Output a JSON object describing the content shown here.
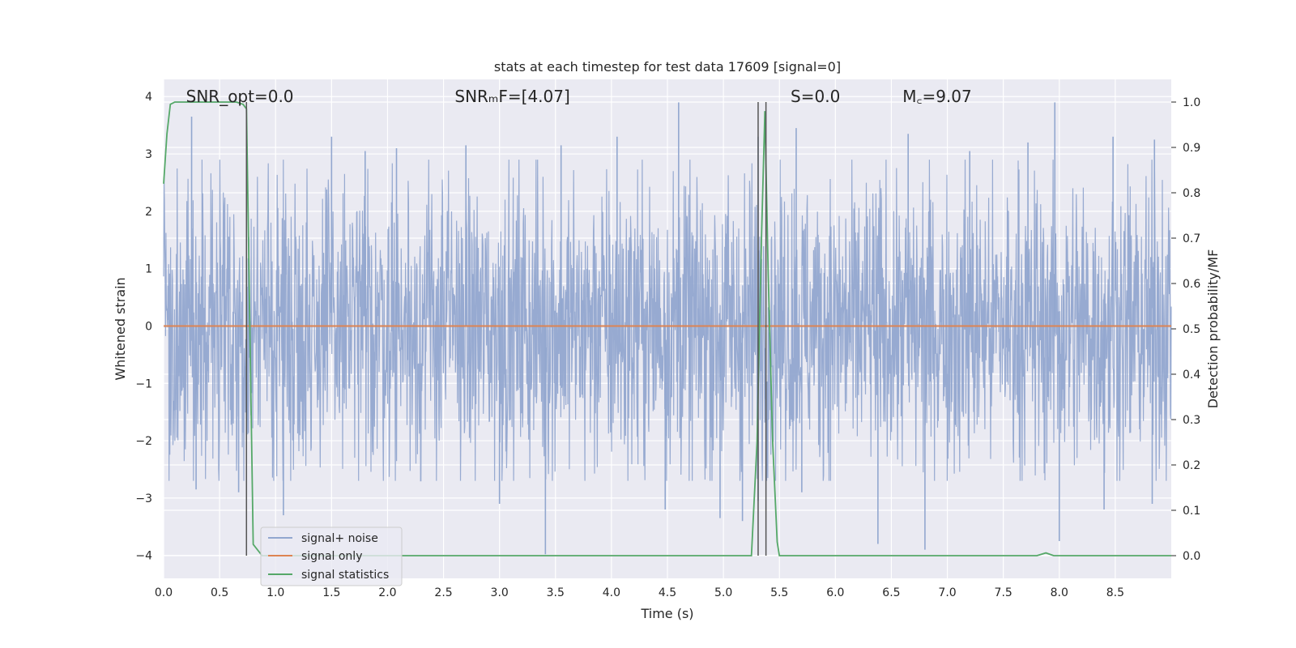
{
  "chart_data": {
    "type": "line",
    "title": "stats at each timestep for test data 17609 [signal=0]",
    "xlabel": "Time (s)",
    "ylabel_left": "Whitened strain",
    "ylabel_right": "Detection probability/MF",
    "xlim": [
      0.0,
      9.0
    ],
    "ylim_left": [
      -4.4,
      4.3
    ],
    "ylim_right": [
      -0.05,
      1.05
    ],
    "x_ticks": [
      0.0,
      0.5,
      1.0,
      1.5,
      2.0,
      2.5,
      3.0,
      3.5,
      4.0,
      4.5,
      5.0,
      5.5,
      6.0,
      6.5,
      7.0,
      7.5,
      8.0,
      8.5
    ],
    "x_tick_labels": [
      "0.0",
      "0.5",
      "1.0",
      "1.5",
      "2.0",
      "2.5",
      "3.0",
      "3.5",
      "4.0",
      "4.5",
      "5.0",
      "5.5",
      "6.0",
      "6.5",
      "7.0",
      "7.5",
      "8.0",
      "8.5"
    ],
    "y_left_ticks": [
      -4,
      -3,
      -2,
      -1,
      0,
      1,
      2,
      3,
      4
    ],
    "y_left_tick_labels": [
      "−4",
      "−3",
      "−2",
      "−1",
      "0",
      "1",
      "2",
      "3",
      "4"
    ],
    "y_right_ticks": [
      0.0,
      0.1,
      0.2,
      0.3,
      0.4,
      0.5,
      0.6,
      0.7,
      0.8,
      0.9,
      1.0
    ],
    "y_right_tick_labels": [
      "0.0",
      "0.1",
      "0.2",
      "0.3",
      "0.4",
      "0.5",
      "0.6",
      "0.7",
      "0.8",
      "0.9",
      "1.0"
    ],
    "grid": true,
    "legend_position": "lower-left",
    "annotations": [
      {
        "id": "snr-opt",
        "text": "SNR_opt=0.0",
        "x": 0.2
      },
      {
        "id": "snr-mf",
        "text": "SNRₘF=[4.07]",
        "x": 2.6
      },
      {
        "id": "s-value",
        "text": "S=0.0",
        "x": 5.6
      },
      {
        "id": "mc-value",
        "text": "M꜀=9.07",
        "x": 6.6
      }
    ],
    "vertical_lines": [
      0.74,
      5.31,
      5.38
    ],
    "series": [
      {
        "name": "signal+ noise",
        "color": "#92a7cf",
        "axis": "left",
        "kind": "noise",
        "duration": 9.0,
        "typical_range": [
          -1.9,
          2.3
        ],
        "spikes": [
          {
            "x": 0.25,
            "y": 3.65
          },
          {
            "x": 0.29,
            "y": -2.85
          },
          {
            "x": 0.67,
            "y": -2.9
          },
          {
            "x": 1.07,
            "y": -3.3
          },
          {
            "x": 1.5,
            "y": 3.3
          },
          {
            "x": 1.8,
            "y": 3.05
          },
          {
            "x": 2.08,
            "y": 3.1
          },
          {
            "x": 2.7,
            "y": 3.15
          },
          {
            "x": 3.0,
            "y": -3.1
          },
          {
            "x": 3.41,
            "y": -3.98
          },
          {
            "x": 3.55,
            "y": 3.15
          },
          {
            "x": 4.05,
            "y": 3.3
          },
          {
            "x": 4.48,
            "y": -3.2
          },
          {
            "x": 4.6,
            "y": 3.9
          },
          {
            "x": 4.97,
            "y": -3.35
          },
          {
            "x": 5.17,
            "y": -3.4
          },
          {
            "x": 5.31,
            "y": 3.3
          },
          {
            "x": 5.31,
            "y": -3.05
          },
          {
            "x": 5.65,
            "y": 3.45
          },
          {
            "x": 5.7,
            "y": -2.9
          },
          {
            "x": 6.38,
            "y": -3.8
          },
          {
            "x": 6.65,
            "y": 3.35
          },
          {
            "x": 6.8,
            "y": -3.9
          },
          {
            "x": 7.2,
            "y": 3.05
          },
          {
            "x": 7.72,
            "y": 3.2
          },
          {
            "x": 7.96,
            "y": 3.9
          },
          {
            "x": 8.0,
            "y": -3.75
          },
          {
            "x": 8.4,
            "y": -3.2
          },
          {
            "x": 8.48,
            "y": 3.3
          },
          {
            "x": 8.85,
            "y": 3.25
          },
          {
            "x": 8.83,
            "y": -3.1
          }
        ]
      },
      {
        "name": "signal only",
        "color": "#dd8452",
        "axis": "left",
        "kind": "line",
        "x": [
          0.0,
          9.0
        ],
        "y": [
          0.0,
          0.0
        ]
      },
      {
        "name": "signal statistics",
        "color": "#55a868",
        "axis": "right",
        "kind": "line",
        "x": [
          0.0,
          0.03,
          0.06,
          0.1,
          0.15,
          0.3,
          0.5,
          0.65,
          0.71,
          0.74,
          0.8,
          0.88,
          1.0,
          2.0,
          3.0,
          4.0,
          5.0,
          5.25,
          5.3,
          5.34,
          5.37,
          5.4,
          5.44,
          5.48,
          5.5,
          6.0,
          6.5,
          7.0,
          7.8,
          7.88,
          7.95,
          8.5,
          9.0
        ],
        "y": [
          0.82,
          0.93,
          0.995,
          1.0,
          1.0,
          1.0,
          1.0,
          1.0,
          0.995,
          0.985,
          0.025,
          0.0,
          0.0,
          0.0,
          0.0,
          0.0,
          0.0,
          0.0,
          0.25,
          0.7,
          0.98,
          0.62,
          0.25,
          0.03,
          0.0,
          0.0,
          0.0,
          0.0,
          0.0,
          0.006,
          0.0,
          0.0,
          0.0
        ]
      }
    ]
  }
}
